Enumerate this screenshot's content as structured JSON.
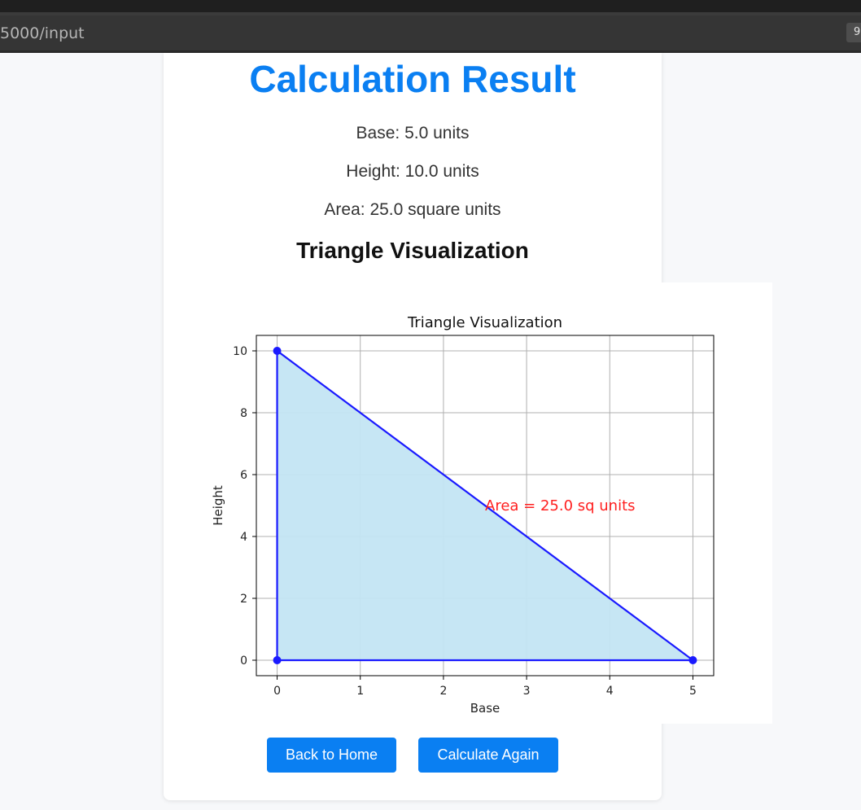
{
  "browser": {
    "url": "5000/input",
    "badge": "9"
  },
  "page": {
    "title": "Calculation Result",
    "base_line": "Base: 5.0 units",
    "height_line": "Height: 10.0 units",
    "area_line": "Area: 25.0 square units",
    "section_title": "Triangle Visualization"
  },
  "buttons": {
    "home_label": "Back to Home",
    "again_label": "Calculate Again"
  },
  "colors": {
    "accent": "#0a7ff2",
    "triangle_line": "#1a1aff",
    "triangle_fill": "#c3e5f3",
    "annotation": "#ff2020"
  },
  "chart_data": {
    "type": "area",
    "title": "Triangle Visualization",
    "xlabel": "Base",
    "ylabel": "Height",
    "xlim": [
      -0.25,
      5.25
    ],
    "ylim": [
      -0.5,
      10.5
    ],
    "xticks": [
      0,
      1,
      2,
      3,
      4,
      5
    ],
    "yticks": [
      0,
      2,
      4,
      6,
      8,
      10
    ],
    "grid": true,
    "points": [
      {
        "x": 0,
        "y": 0
      },
      {
        "x": 5,
        "y": 0
      },
      {
        "x": 0,
        "y": 10
      }
    ],
    "annotation": {
      "text": "Area = 25.0 sq units",
      "x": 2.5,
      "y": 5
    }
  }
}
